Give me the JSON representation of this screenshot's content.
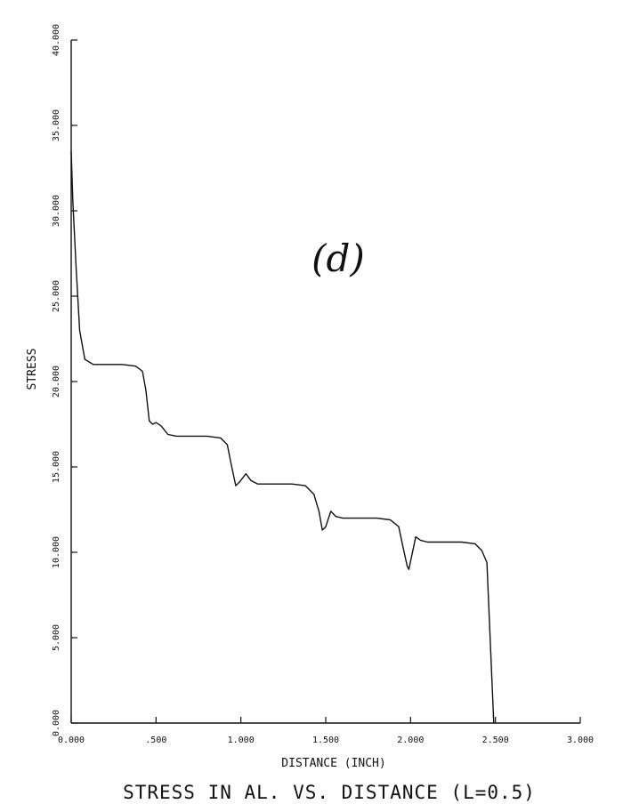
{
  "chart_data": {
    "type": "line",
    "title": "STRESS IN AL. VS. DISTANCE (L=0.5)",
    "xlabel": "DISTANCE (INCH)",
    "ylabel": "STRESS",
    "annotation": "(d)",
    "xlim": [
      0,
      3
    ],
    "ylim": [
      0,
      40
    ],
    "grid": false,
    "x_ticks": [
      {
        "value": 0,
        "label": "0.000"
      },
      {
        "value": 0.5,
        "label": ".500"
      },
      {
        "value": 1,
        "label": "1.000"
      },
      {
        "value": 1.5,
        "label": "1.500"
      },
      {
        "value": 2,
        "label": "2.000"
      },
      {
        "value": 2.5,
        "label": "2.500"
      },
      {
        "value": 3,
        "label": "3.000"
      }
    ],
    "y_ticks": [
      {
        "value": 0,
        "label": "0.000"
      },
      {
        "value": 5,
        "label": "5.000"
      },
      {
        "value": 10,
        "label": "10.000"
      },
      {
        "value": 15,
        "label": "15.000"
      },
      {
        "value": 20,
        "label": "20.000"
      },
      {
        "value": 25,
        "label": "25.000"
      },
      {
        "value": 30,
        "label": "30.000"
      },
      {
        "value": 35,
        "label": "35.000"
      },
      {
        "value": 40,
        "label": "40.000"
      }
    ],
    "series": [
      {
        "color": "#111111",
        "x": [
          0,
          0.01,
          0.03,
          0.05,
          0.08,
          0.13,
          0.2,
          0.3,
          0.38,
          0.42,
          0.44,
          0.46,
          0.48,
          0.5,
          0.53,
          0.57,
          0.62,
          0.7,
          0.8,
          0.88,
          0.92,
          0.94,
          0.97,
          0.99,
          1.03,
          1.06,
          1.1,
          1.2,
          1.3,
          1.38,
          1.43,
          1.46,
          1.48,
          1.5,
          1.53,
          1.56,
          1.6,
          1.7,
          1.8,
          1.88,
          1.93,
          1.96,
          1.98,
          1.99,
          2.03,
          2.06,
          2.1,
          2.2,
          2.3,
          2.38,
          2.42,
          2.45,
          2.49
        ],
        "y": [
          33.5,
          30.5,
          26.5,
          23,
          21.3,
          21,
          21,
          21,
          20.9,
          20.6,
          19.5,
          17.7,
          17.5,
          17.6,
          17.4,
          16.9,
          16.8,
          16.8,
          16.8,
          16.7,
          16.3,
          15.3,
          13.9,
          14.1,
          14.6,
          14.2,
          14.0,
          14.0,
          14.0,
          13.9,
          13.4,
          12.4,
          11.3,
          11.5,
          12.4,
          12.1,
          12.0,
          12.0,
          12.0,
          11.9,
          11.5,
          10.1,
          9.2,
          9.0,
          10.9,
          10.7,
          10.6,
          10.6,
          10.6,
          10.5,
          10.1,
          9.4,
          0
        ]
      }
    ]
  }
}
